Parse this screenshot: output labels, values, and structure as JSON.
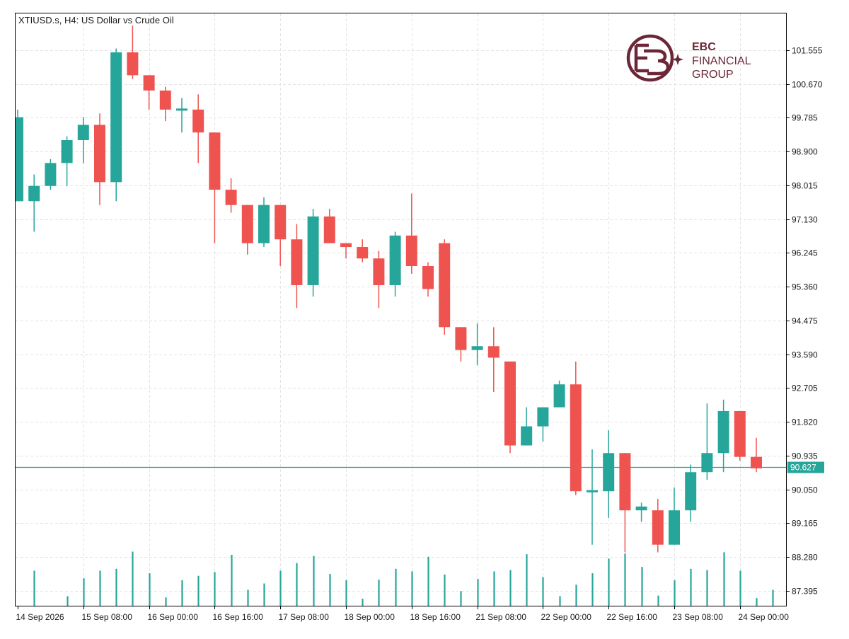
{
  "header": {
    "title": "XTIUSD.s, H4:  US Dollar vs Crude Oil"
  },
  "logo": {
    "line1": "EBC",
    "line2": "FINANCIAL",
    "line3": "GROUP"
  },
  "colors": {
    "bull": "#26a69a",
    "bear": "#ef5350",
    "grid": "#e3e3e3",
    "axis": "#000000",
    "logo": "#6b2737",
    "price_line": "#26a69a"
  },
  "chart_data": {
    "type": "candlestick",
    "symbol": "XTIUSD.s",
    "timeframe": "H4",
    "title": "XTIUSD.s, H4:  US Dollar vs Crude Oil",
    "ylim": [
      86.7,
      102.4
    ],
    "y_ticks": [
      101.555,
      100.67,
      99.785,
      98.9,
      98.015,
      97.13,
      96.245,
      95.36,
      94.475,
      93.59,
      92.705,
      91.82,
      90.935,
      90.05,
      89.165,
      88.28,
      87.395
    ],
    "y_tick_labels": [
      "101.555",
      "100.670",
      "99.785",
      "98.900",
      "98.015",
      "97.130",
      "96.245",
      "95.360",
      "94.475",
      "93.590",
      "92.705",
      "91.820",
      "90.935",
      "90.050",
      "89.165",
      "88.280",
      "87.395"
    ],
    "x_labels": [
      {
        "bar": 0,
        "label": "14 Sep 2026"
      },
      {
        "bar": 4,
        "label": "15 Sep 08:00"
      },
      {
        "bar": 8,
        "label": "16 Sep 00:00"
      },
      {
        "bar": 12,
        "label": "16 Sep 16:00"
      },
      {
        "bar": 16,
        "label": "17 Sep 08:00"
      },
      {
        "bar": 20,
        "label": "18 Sep 00:00"
      },
      {
        "bar": 24,
        "label": "18 Sep 16:00"
      },
      {
        "bar": 28,
        "label": "21 Sep 08:00"
      },
      {
        "bar": 32,
        "label": "22 Sep 00:00"
      },
      {
        "bar": 36,
        "label": "22 Sep 16:00"
      },
      {
        "bar": 40,
        "label": "23 Sep 08:00"
      },
      {
        "bar": 44,
        "label": "24 Sep 00:00"
      }
    ],
    "current_price": 90.627,
    "current_price_label": "90.627",
    "grid": true,
    "candles": [
      {
        "o": 97.6,
        "h": 100.0,
        "l": 97.6,
        "c": 99.8
      },
      {
        "o": 97.6,
        "h": 98.3,
        "l": 96.8,
        "c": 98.0
      },
      {
        "o": 98.0,
        "h": 98.7,
        "l": 97.9,
        "c": 98.6
      },
      {
        "o": 98.6,
        "h": 99.3,
        "l": 98.0,
        "c": 99.2
      },
      {
        "o": 99.2,
        "h": 99.8,
        "l": 98.6,
        "c": 99.6
      },
      {
        "o": 99.6,
        "h": 99.9,
        "l": 97.5,
        "c": 98.1
      },
      {
        "o": 98.1,
        "h": 101.6,
        "l": 97.6,
        "c": 101.5
      },
      {
        "o": 101.5,
        "h": 102.2,
        "l": 100.8,
        "c": 100.9
      },
      {
        "o": 100.9,
        "h": 100.9,
        "l": 100.0,
        "c": 100.5
      },
      {
        "o": 100.5,
        "h": 100.6,
        "l": 99.7,
        "c": 100.0
      },
      {
        "o": 100.0,
        "h": 100.3,
        "l": 99.4,
        "c": 100.0
      },
      {
        "o": 100.0,
        "h": 100.4,
        "l": 98.6,
        "c": 99.4
      },
      {
        "o": 99.4,
        "h": 99.4,
        "l": 96.5,
        "c": 97.9
      },
      {
        "o": 97.9,
        "h": 98.2,
        "l": 97.3,
        "c": 97.5
      },
      {
        "o": 97.5,
        "h": 97.5,
        "l": 96.2,
        "c": 96.5
      },
      {
        "o": 96.5,
        "h": 97.7,
        "l": 96.4,
        "c": 97.5
      },
      {
        "o": 97.5,
        "h": 97.5,
        "l": 95.9,
        "c": 96.6
      },
      {
        "o": 96.6,
        "h": 97.0,
        "l": 94.8,
        "c": 95.4
      },
      {
        "o": 95.4,
        "h": 97.4,
        "l": 95.1,
        "c": 97.2
      },
      {
        "o": 97.2,
        "h": 97.4,
        "l": 96.5,
        "c": 96.5
      },
      {
        "o": 96.5,
        "h": 96.5,
        "l": 96.1,
        "c": 96.4
      },
      {
        "o": 96.4,
        "h": 96.6,
        "l": 96.0,
        "c": 96.1
      },
      {
        "o": 96.1,
        "h": 96.3,
        "l": 94.8,
        "c": 95.4
      },
      {
        "o": 95.4,
        "h": 96.8,
        "l": 95.1,
        "c": 96.7
      },
      {
        "o": 96.7,
        "h": 97.8,
        "l": 95.7,
        "c": 95.9
      },
      {
        "o": 95.9,
        "h": 96.0,
        "l": 95.1,
        "c": 95.3
      },
      {
        "o": 96.5,
        "h": 96.6,
        "l": 94.1,
        "c": 94.3
      },
      {
        "o": 94.3,
        "h": 94.3,
        "l": 93.4,
        "c": 93.7
      },
      {
        "o": 93.7,
        "h": 94.4,
        "l": 93.3,
        "c": 93.8
      },
      {
        "o": 93.8,
        "h": 94.3,
        "l": 92.6,
        "c": 93.5
      },
      {
        "o": 93.4,
        "h": 93.4,
        "l": 91.0,
        "c": 91.2
      },
      {
        "o": 91.2,
        "h": 92.2,
        "l": 91.2,
        "c": 91.7
      },
      {
        "o": 91.7,
        "h": 92.2,
        "l": 91.3,
        "c": 92.2
      },
      {
        "o": 92.2,
        "h": 92.9,
        "l": 92.2,
        "c": 92.8
      },
      {
        "o": 92.8,
        "h": 93.4,
        "l": 89.9,
        "c": 90.0
      },
      {
        "o": 90.0,
        "h": 91.1,
        "l": 88.6,
        "c": 90.0
      },
      {
        "o": 90.0,
        "h": 91.6,
        "l": 89.3,
        "c": 91.0
      },
      {
        "o": 91.0,
        "h": 91.0,
        "l": 88.4,
        "c": 89.5
      },
      {
        "o": 89.5,
        "h": 89.7,
        "l": 89.2,
        "c": 89.6
      },
      {
        "o": 89.5,
        "h": 89.8,
        "l": 88.4,
        "c": 88.6
      },
      {
        "o": 88.6,
        "h": 90.1,
        "l": 88.6,
        "c": 89.5
      },
      {
        "o": 89.5,
        "h": 90.7,
        "l": 89.2,
        "c": 90.5
      },
      {
        "o": 90.5,
        "h": 92.3,
        "l": 90.3,
        "c": 91.0
      },
      {
        "o": 91.0,
        "h": 92.4,
        "l": 90.5,
        "c": 92.1
      },
      {
        "o": 92.1,
        "h": 92.1,
        "l": 90.8,
        "c": 90.9
      },
      {
        "o": 90.9,
        "h": 91.4,
        "l": 90.5,
        "c": 90.6
      }
    ],
    "volume": [
      0.55,
      0.0,
      0.15,
      0.43,
      0.55,
      0.58,
      0.85,
      0.51,
      0.13,
      0.4,
      0.47,
      0.53,
      0.8,
      0.25,
      0.35,
      0.55,
      0.67,
      0.78,
      0.5,
      0.4,
      0.11,
      0.41,
      0.58,
      0.54,
      0.77,
      0.49,
      0.23,
      0.42,
      0.54,
      0.56,
      0.81,
      0.45,
      0.15,
      0.33,
      0.51,
      0.74,
      0.82,
      0.61,
      0.16,
      0.4,
      0.58,
      0.56,
      0.84,
      0.55,
      0.12,
      0.25
    ]
  }
}
